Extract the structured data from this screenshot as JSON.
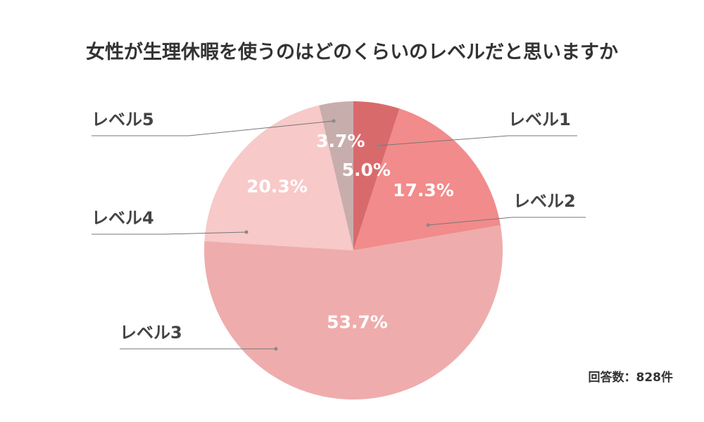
{
  "chart_data": {
    "type": "pie",
    "title": "女性が生理休暇を使うのはどのくらいのレベルだと思いますか",
    "categories": [
      "レベル1",
      "レベル2",
      "レベル3",
      "レベル4",
      "レベル5"
    ],
    "values": [
      5.0,
      17.3,
      53.7,
      20.3,
      3.7
    ],
    "value_labels": [
      "5.0%",
      "17.3%",
      "53.7%",
      "20.3%",
      "3.7%"
    ],
    "colors": [
      "#d96a6c",
      "#f28b8b",
      "#efacac",
      "#f7c9c8",
      "#c8adad"
    ],
    "start": "12 o'clock",
    "direction": "clockwise",
    "legend": "callout labels"
  },
  "note": "回答数：828件"
}
